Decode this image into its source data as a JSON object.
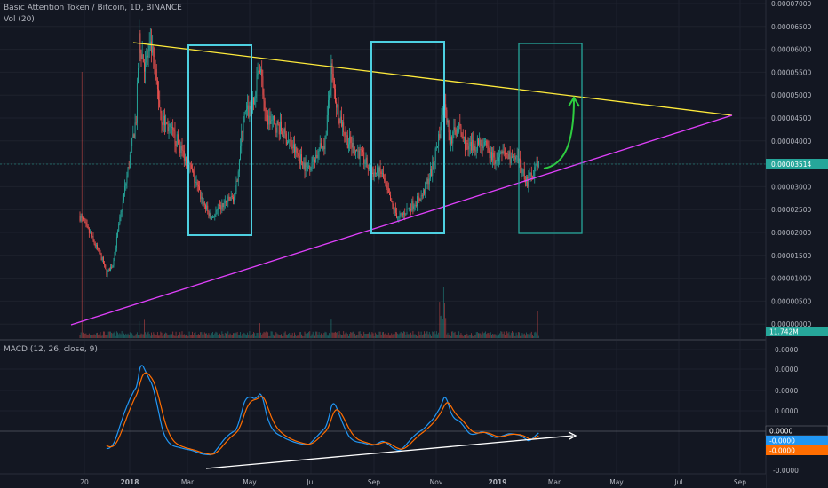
{
  "header": {
    "symbol_title": "Basic Attention Token / Bitcoin, 1D, BINANCE",
    "volume_label": "Vol (20)",
    "macd_label": "MACD (12, 26, close, 9)"
  },
  "price_axis": {
    "ticks": [
      "0.00007000",
      "0.00006500",
      "0.00006000",
      "0.00005500",
      "0.00005000",
      "0.00004500",
      "0.00004000",
      "0.00003500",
      "0.00003000",
      "0.00002500",
      "0.00002000",
      "0.00001500",
      "0.00001000",
      "0.00000500",
      "0.00000000"
    ],
    "current_price": "0.00003514",
    "volume_value": "11.742M"
  },
  "macd_axis": {
    "ticks": [
      "0.0000",
      "0.0000",
      "0.0000",
      "0.0000",
      "0.0000"
    ],
    "tag_macd": "0.0000",
    "tag_signal": "-0.0000",
    "tag_hist": "-0.0000",
    "bottom": "-0.0000"
  },
  "time_axis": {
    "labels": [
      "20",
      "2018",
      "Mar",
      "May",
      "Jul",
      "Sep",
      "Nov",
      "2019",
      "Mar",
      "May",
      "Jul",
      "Sep"
    ]
  },
  "colors": {
    "background": "#131722",
    "up": "#26a69a",
    "down": "#ef5350",
    "triangle_top": "#ffeb3b",
    "triangle_bottom": "#e040fb",
    "box": "#4dd0e1",
    "arrow": "#2ecc40",
    "macd": "#2196f3",
    "signal": "#ff6d00"
  },
  "chart_data": {
    "type": "candlestick",
    "title": "Basic Attention Token / Bitcoin, 1D, BINANCE",
    "price_range": [
      0.0,
      7e-05
    ],
    "approx_close_path": [
      {
        "x": "Dec 2017",
        "y": 2e-05
      },
      {
        "x": "Jan 2018",
        "y": 6e-05
      },
      {
        "x": "Feb 2018",
        "y": 4e-05
      },
      {
        "x": "Mar 2018",
        "y": 2.5e-05
      },
      {
        "x": "Apr 2018",
        "y": 3e-05
      },
      {
        "x": "May 2018",
        "y": 5.5e-05
      },
      {
        "x": "Jun 2018",
        "y": 3.5e-05
      },
      {
        "x": "Jul 2018",
        "y": 5.2e-05
      },
      {
        "x": "Aug 2018",
        "y": 3.2e-05
      },
      {
        "x": "Sep 2018",
        "y": 2.5e-05
      },
      {
        "x": "Oct 2018",
        "y": 3.2e-05
      },
      {
        "x": "Nov 2018",
        "y": 5e-05
      },
      {
        "x": "Dec 2018",
        "y": 3.8e-05
      },
      {
        "x": "Jan 2019",
        "y": 3.5e-05
      },
      {
        "x": "Feb 2019",
        "y": 3.5e-05
      }
    ],
    "last_price": 3.514e-05,
    "last_volume": "11.742M"
  }
}
